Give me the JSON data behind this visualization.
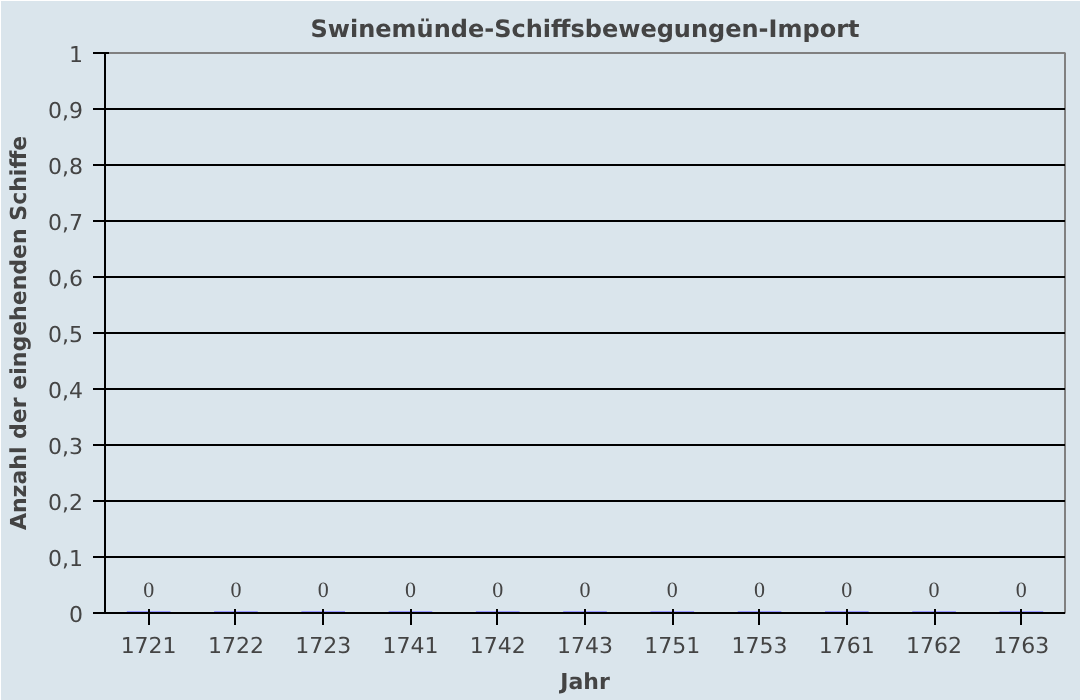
{
  "chart_data": {
    "type": "bar",
    "title": "Swinemünde-Schiffsbewegungen-Import",
    "xlabel": "Jahr",
    "ylabel": "Anzahl der eingehenden Schiffe",
    "categories": [
      "1721",
      "1722",
      "1723",
      "1741",
      "1742",
      "1743",
      "1751",
      "1753",
      "1761",
      "1762",
      "1763"
    ],
    "values": [
      0,
      0,
      0,
      0,
      0,
      0,
      0,
      0,
      0,
      0,
      0
    ],
    "color": "#9999ff",
    "ylim": [
      0,
      1
    ],
    "yticks": [
      0,
      {
        "value": 0.1,
        "label": "0,1"
      },
      {
        "value": 0.2,
        "label": "0,2"
      },
      {
        "value": 0.3,
        "label": "0,3"
      },
      {
        "value": 0.4,
        "label": "0,4"
      },
      {
        "value": 0.5,
        "label": "0,5"
      },
      {
        "value": 0.6,
        "label": "0,6"
      },
      {
        "value": 0.7,
        "label": "0,7"
      },
      {
        "value": 0.8,
        "label": "0,8"
      },
      {
        "value": 0.9,
        "label": "0,9"
      },
      1
    ],
    "grid": "y",
    "data_labels": true
  }
}
